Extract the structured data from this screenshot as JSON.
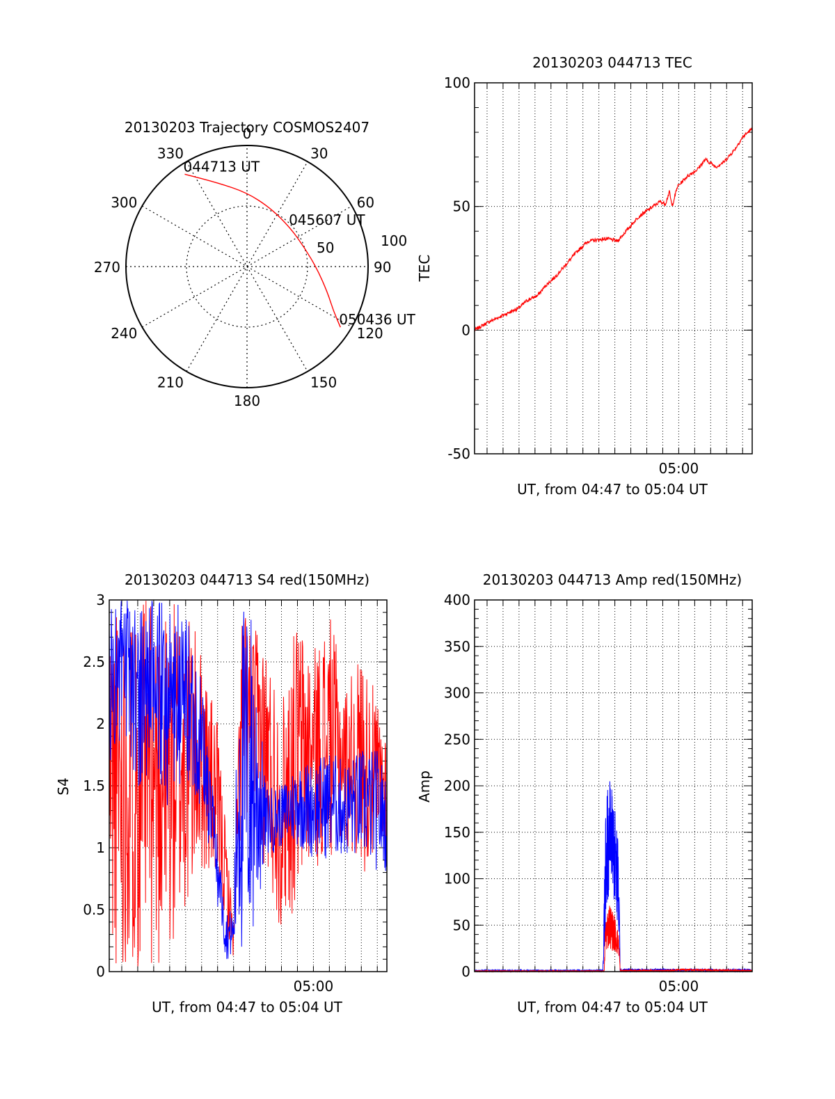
{
  "chart_data": [
    {
      "id": "trajectory",
      "type": "polar",
      "title": "20130203 Trajectory COSMOS2407",
      "angle_labels": [
        "0",
        "30",
        "60",
        "90",
        "120",
        "150",
        "180",
        "210",
        "240",
        "270",
        "300",
        "330"
      ],
      "radius_labels": [
        "50",
        "100"
      ],
      "rlim": [
        0,
        100
      ],
      "grid": true,
      "series": [
        {
          "color": "#ff0000",
          "points": [
            {
              "az": 326,
              "r": 92
            },
            {
              "az": 341,
              "r": 73
            },
            {
              "az": 0,
              "r": 61
            },
            {
              "az": 22,
              "r": 52
            },
            {
              "az": 48,
              "r": 48
            },
            {
              "az": 72,
              "r": 50
            },
            {
              "az": 92,
              "r": 58
            },
            {
              "az": 108,
              "r": 70
            },
            {
              "az": 117,
              "r": 80
            },
            {
              "az": 123,
              "r": 92
            }
          ]
        }
      ],
      "annotations": [
        {
          "text": "044713 UT",
          "az": 326,
          "r": 92
        },
        {
          "text": "045607 UT",
          "az": 48,
          "r": 48
        },
        {
          "text": "050436 UT",
          "az": 123,
          "r": 92
        }
      ]
    },
    {
      "id": "tec",
      "type": "line",
      "title": "20130203 044713 TEC",
      "xlabel": "UT, from 04:47 to 05:04 UT",
      "ylabel": "TEC",
      "xlim": [
        "04:47:13",
        "05:04:36"
      ],
      "ylim": [
        -50,
        100
      ],
      "yticks": [
        "-50",
        "0",
        "50",
        "100"
      ],
      "xticks": [
        {
          "label": "05:00",
          "t": "05:00:00"
        }
      ],
      "grid": true,
      "series": [
        {
          "color": "#ff0000",
          "points": [
            [
              "04:47:13",
              0
            ],
            [
              "04:48:00",
              3
            ],
            [
              "04:48:40",
              5
            ],
            [
              "04:49:20",
              7
            ],
            [
              "04:50:00",
              9
            ],
            [
              "04:50:30",
              12
            ],
            [
              "04:51:10",
              14
            ],
            [
              "04:51:40",
              18
            ],
            [
              "04:52:20",
              22
            ],
            [
              "04:53:00",
              27
            ],
            [
              "04:53:40",
              32
            ],
            [
              "04:54:20",
              36
            ],
            [
              "04:55:30",
              37
            ],
            [
              "04:56:10",
              36
            ],
            [
              "04:56:50",
              41
            ],
            [
              "04:57:30",
              46
            ],
            [
              "04:58:10",
              49
            ],
            [
              "04:58:50",
              52
            ],
            [
              "04:59:10",
              51
            ],
            [
              "04:59:25",
              56
            ],
            [
              "04:59:35",
              50
            ],
            [
              "04:59:55",
              58
            ],
            [
              "05:00:30",
              62
            ],
            [
              "05:01:10",
              65
            ],
            [
              "05:01:40",
              69
            ],
            [
              "05:02:20",
              66
            ],
            [
              "05:02:50",
              68
            ],
            [
              "05:03:30",
              73
            ],
            [
              "05:04:00",
              78
            ],
            [
              "05:04:30",
              81
            ]
          ]
        }
      ]
    },
    {
      "id": "s4",
      "type": "line",
      "title": "20130203 044713 S4 red(150MHz)",
      "xlabel": "UT, from 04:47 to 05:04 UT",
      "ylabel": "S4",
      "xlim": [
        "04:47:13",
        "05:04:36"
      ],
      "ylim": [
        0,
        3
      ],
      "yticks": [
        "0",
        "0.5",
        "1",
        "1.5",
        "2",
        "2.5",
        "3"
      ],
      "xticks": [
        {
          "label": "05:00",
          "t": "05:00:00"
        }
      ],
      "grid": true,
      "series": [
        {
          "color": "#ff0000",
          "profile": [
            [
              "04:47:13",
              0.0,
              3.0
            ],
            [
              "04:48:00",
              0.0,
              3.0
            ],
            [
              "04:49:00",
              0.0,
              3.0
            ],
            [
              "04:50:00",
              0.0,
              3.0
            ],
            [
              "04:51:00",
              0.0,
              3.0
            ],
            [
              "04:52:00",
              0.3,
              3.0
            ],
            [
              "04:53:00",
              0.8,
              2.6
            ],
            [
              "04:54:00",
              0.6,
              2.0
            ],
            [
              "04:55:00",
              0.1,
              0.4
            ],
            [
              "04:55:30",
              1.0,
              3.0
            ],
            [
              "04:56:00",
              1.3,
              2.8
            ],
            [
              "04:57:00",
              0.7,
              2.7
            ],
            [
              "04:58:00",
              0.3,
              2.2
            ],
            [
              "04:59:00",
              0.5,
              2.9
            ],
            [
              "05:00:00",
              0.8,
              2.6
            ],
            [
              "05:01:00",
              0.9,
              2.9
            ],
            [
              "05:02:00",
              1.0,
              2.3
            ],
            [
              "05:03:00",
              0.8,
              2.6
            ],
            [
              "05:04:00",
              0.8,
              2.2
            ],
            [
              "05:04:36",
              0.9,
              2.0
            ]
          ]
        },
        {
          "color": "#0000ff",
          "profile": [
            [
              "04:47:13",
              1.6,
              3.0
            ],
            [
              "04:48:00",
              1.8,
              3.0
            ],
            [
              "04:49:00",
              1.5,
              3.0
            ],
            [
              "04:50:00",
              1.5,
              3.0
            ],
            [
              "04:51:00",
              1.3,
              3.0
            ],
            [
              "04:52:00",
              1.4,
              3.0
            ],
            [
              "04:53:00",
              1.3,
              2.4
            ],
            [
              "04:54:30",
              0.1,
              0.5
            ],
            [
              "04:55:00",
              0.1,
              0.5
            ],
            [
              "04:55:20",
              0.0,
              3.0
            ],
            [
              "04:56:10",
              0.0,
              3.0
            ],
            [
              "04:57:00",
              0.9,
              1.5
            ],
            [
              "04:58:00",
              1.0,
              1.5
            ],
            [
              "04:59:00",
              1.0,
              1.7
            ],
            [
              "05:00:00",
              0.9,
              1.7
            ],
            [
              "05:01:00",
              0.9,
              1.8
            ],
            [
              "05:02:00",
              0.9,
              1.7
            ],
            [
              "05:03:00",
              0.9,
              1.8
            ],
            [
              "05:04:00",
              0.8,
              1.8
            ],
            [
              "05:04:36",
              0.8,
              1.6
            ]
          ]
        }
      ]
    },
    {
      "id": "amp",
      "type": "line",
      "title": "20130203 044713 Amp red(150MHz)",
      "xlabel": "UT, from 04:47 to 05:04 UT",
      "ylabel": "Amp",
      "xlim": [
        "04:47:13",
        "05:04:36"
      ],
      "ylim": [
        0,
        400
      ],
      "yticks": [
        "0",
        "50",
        "100",
        "150",
        "200",
        "250",
        "300",
        "350",
        "400"
      ],
      "xticks": [
        {
          "label": "05:00",
          "t": "05:00:00"
        }
      ],
      "grid": true,
      "series": [
        {
          "color": "#ff0000",
          "profile": [
            [
              "04:47:13",
              0,
              1
            ],
            [
              "04:54:20",
              0,
              1
            ],
            [
              "04:55:20",
              0,
              1
            ],
            [
              "04:55:25",
              20,
              60
            ],
            [
              "04:55:40",
              25,
              75
            ],
            [
              "04:56:00",
              20,
              60
            ],
            [
              "04:56:15",
              15,
              40
            ],
            [
              "04:56:20",
              0,
              2
            ],
            [
              "04:59:30",
              0,
              2
            ],
            [
              "05:00:00",
              1,
              3
            ],
            [
              "05:04:36",
              0,
              2
            ]
          ]
        },
        {
          "color": "#0000ff",
          "profile": [
            [
              "04:47:13",
              0,
              2
            ],
            [
              "04:55:15",
              0,
              2
            ],
            [
              "04:55:25",
              30,
              170
            ],
            [
              "04:55:35",
              80,
              215
            ],
            [
              "04:55:50",
              90,
              200
            ],
            [
              "04:56:05",
              50,
              170
            ],
            [
              "04:56:15",
              20,
              130
            ],
            [
              "04:56:20",
              0,
              3
            ],
            [
              "05:04:36",
              0,
              3
            ]
          ]
        }
      ]
    }
  ]
}
